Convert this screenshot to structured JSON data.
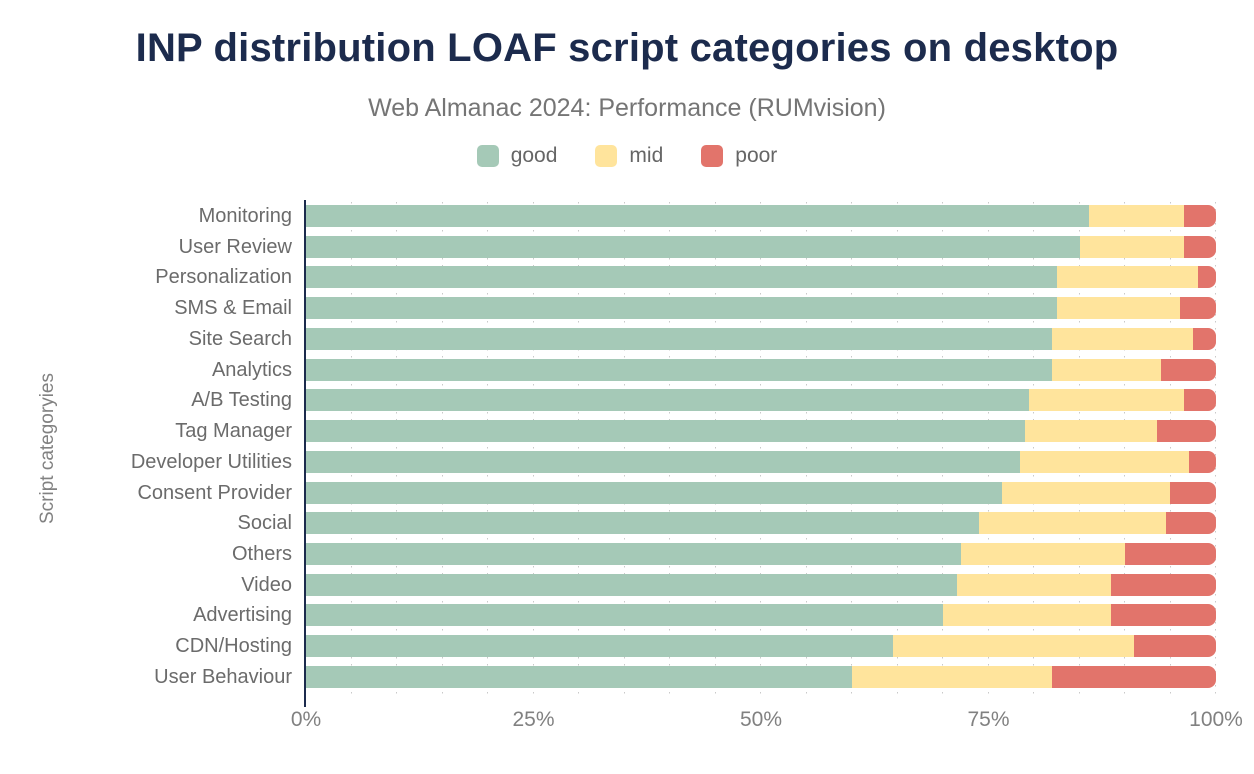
{
  "title": "INP distribution LOAF script categories on desktop",
  "subtitle": "Web Almanac 2024: Performance (RUMvision)",
  "y_axis_label": "Script categoryies",
  "x_ticks": [
    "0%",
    "25%",
    "50%",
    "75%",
    "100%"
  ],
  "legend": [
    {
      "label": "good",
      "color": "#a5c9b7"
    },
    {
      "label": "mid",
      "color": "#ffe49c"
    },
    {
      "label": "poor",
      "color": "#e2746b"
    }
  ],
  "colors": {
    "title": "#1c2b4d",
    "subtitle": "#757575",
    "axis_line": "#1c2b4d",
    "category_label": "#6b6b6b",
    "tick_label": "#818181",
    "gridline": "#c9c9c9",
    "good": "#a5c9b7",
    "mid": "#ffe49c",
    "poor": "#e2746b"
  },
  "chart_data": {
    "type": "bar",
    "orientation": "horizontal",
    "stacked": true,
    "unit": "percent",
    "xlim": [
      0,
      100
    ],
    "grid": "vertical dotted lines every 5%",
    "legend_position": "top",
    "title": "INP distribution LOAF script categories on desktop",
    "subtitle": "Web Almanac 2024: Performance (RUMvision)",
    "xlabel": "",
    "ylabel": "Script categoryies",
    "categories": [
      "Monitoring",
      "User Review",
      "Personalization",
      "SMS & Email",
      "Site Search",
      "Analytics",
      "A/B Testing",
      "Tag Manager",
      "Developer Utilities",
      "Consent Provider",
      "Social",
      "Others",
      "Video",
      "Advertising",
      "CDN/Hosting",
      "User Behaviour"
    ],
    "series": [
      {
        "name": "good",
        "values": [
          86,
          85,
          82.5,
          82.5,
          82,
          82,
          79.5,
          79,
          78.5,
          76.5,
          74,
          72,
          71.5,
          70,
          64.5,
          60
        ]
      },
      {
        "name": "mid",
        "values": [
          10.5,
          11.5,
          15.5,
          13.5,
          15.5,
          12,
          17,
          14.5,
          18.5,
          18.5,
          20.5,
          18,
          17,
          18.5,
          26.5,
          22
        ]
      },
      {
        "name": "poor",
        "values": [
          3.5,
          3.5,
          2,
          4,
          2.5,
          6,
          3.5,
          6.5,
          3,
          5,
          5.5,
          10,
          11.5,
          11.5,
          9,
          18
        ]
      }
    ]
  }
}
